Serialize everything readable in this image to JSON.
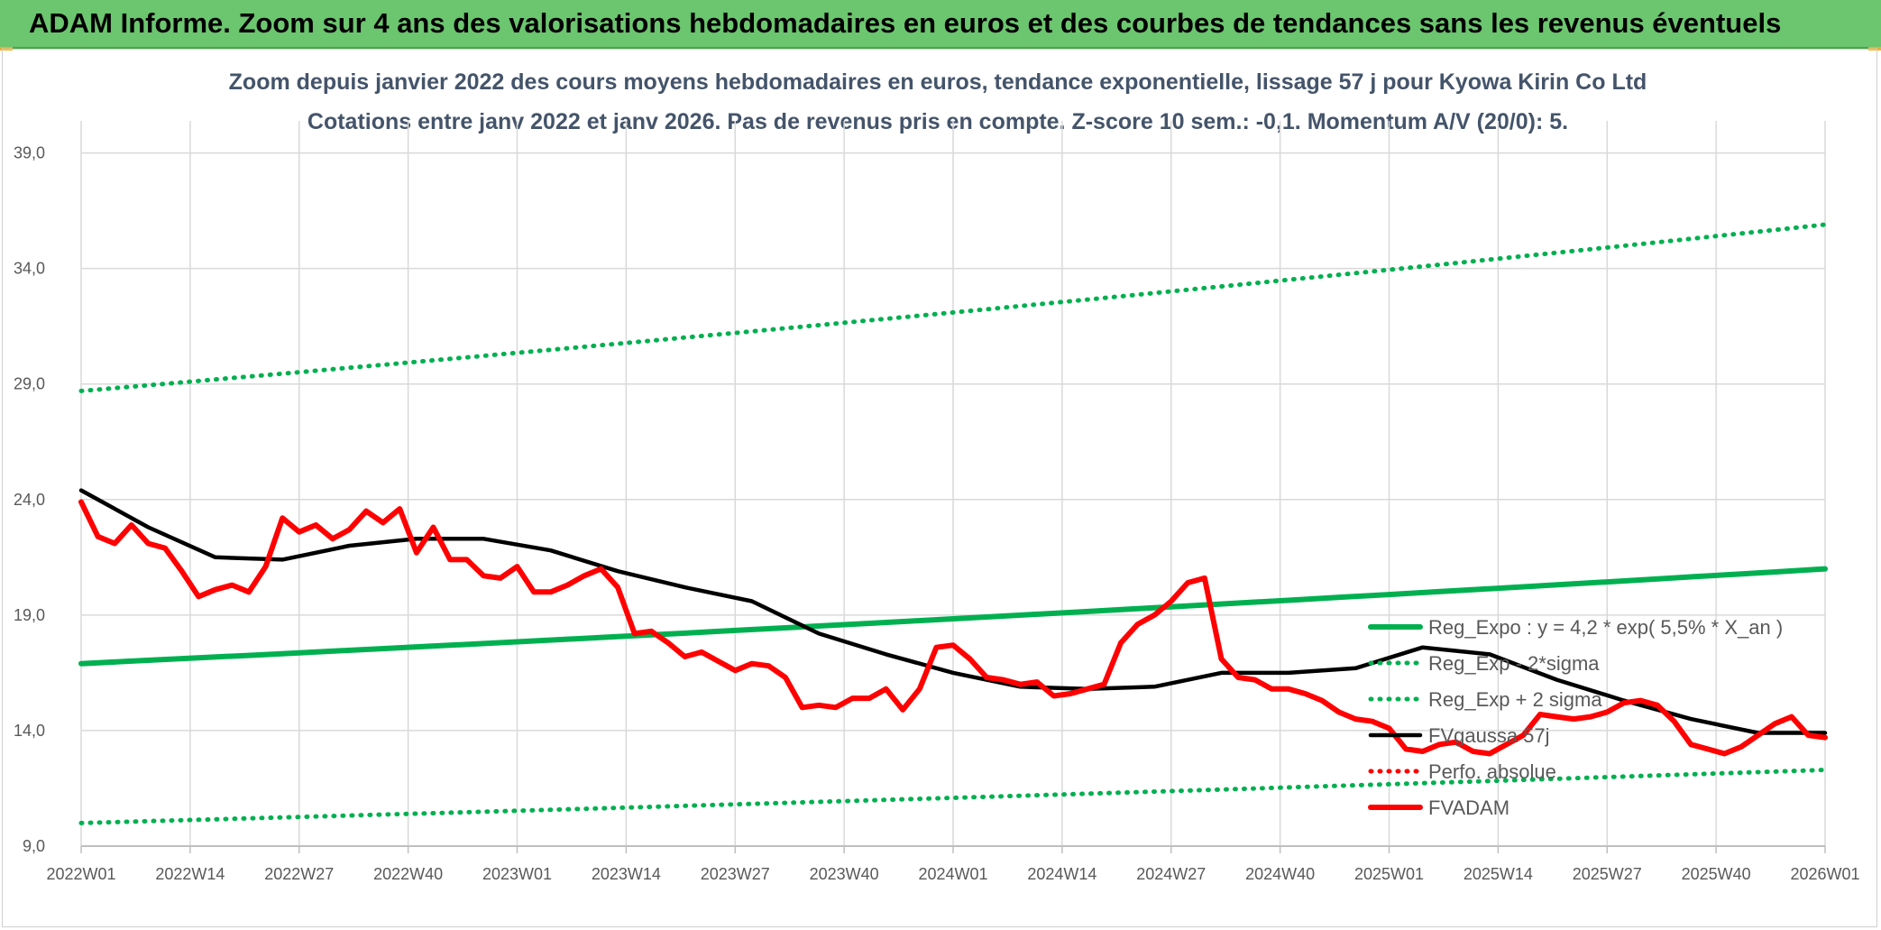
{
  "banner": {
    "title": "ADAM Informe. Zoom sur 4 ans des valorisations hebdomadaires en euros et des courbes de tendances sans les revenus éventuels"
  },
  "colors": {
    "banner": "#6cc56f",
    "trend": "#00b050",
    "fvadam": "#ff0000",
    "smooth": "#000000",
    "perfo": "#ff0000",
    "grid": "#d9d9d9",
    "text": "#44546a"
  },
  "chart_data": {
    "type": "line",
    "title": "Zoom depuis janvier 2022 des cours moyens hebdomadaires en euros, tendance exponentielle, lissage 57 j pour Kyowa Kirin Co Ltd",
    "subtitle": "Cotations entre janv 2022 et janv 2026. Pas de revenus pris en compte. Z-score 10 sem.: -0,1. Momentum A/V (20/0): 5.",
    "xlabel": "",
    "ylabel": "",
    "ylim": [
      9,
      40
    ],
    "yticks": [
      "9,0",
      "14,0",
      "19,0",
      "24,0",
      "29,0",
      "34,0",
      "39,0"
    ],
    "xticks": [
      "2022W01",
      "2022W14",
      "2022W27",
      "2022W40",
      "2023W01",
      "2023W14",
      "2023W27",
      "2023W40",
      "2024W01",
      "2024W14",
      "2024W27",
      "2024W40",
      "2025W01",
      "2025W14",
      "2025W27",
      "2025W40",
      "2026W01"
    ],
    "grid": true,
    "legend_position": "bottom-right",
    "series": [
      {
        "name": "Reg_Expo : y = 4,2 * exp( 5,5% *  X_an )",
        "style": "solid-thick",
        "color": "#00b050",
        "x": [
          0,
          208
        ],
        "y": [
          16.9,
          21.0
        ]
      },
      {
        "name": "Reg_Exp - 2*sigma",
        "style": "dotted",
        "color": "#00b050",
        "x": [
          0,
          208
        ],
        "y": [
          10.0,
          12.3
        ]
      },
      {
        "name": "Reg_Exp + 2 sigma",
        "style": "dotted",
        "color": "#00b050",
        "x": [
          0,
          208
        ],
        "y": [
          28.7,
          35.9
        ]
      },
      {
        "name": "FVgaussa 57j",
        "style": "solid",
        "color": "#000000",
        "x": [
          0,
          8,
          16,
          24,
          32,
          40,
          48,
          56,
          64,
          72,
          80,
          88,
          96,
          104,
          112,
          120,
          128,
          136,
          144,
          152,
          160,
          168,
          176,
          184,
          192,
          200,
          208
        ],
        "y": [
          24.4,
          22.8,
          21.5,
          21.4,
          22.0,
          22.3,
          22.3,
          21.8,
          20.9,
          20.2,
          19.6,
          18.2,
          17.3,
          16.5,
          15.9,
          15.8,
          15.9,
          16.5,
          16.5,
          16.7,
          17.6,
          17.3,
          16.2,
          15.3,
          14.5,
          13.9,
          13.9
        ]
      },
      {
        "name": "Perfo. absolue",
        "style": "dotted",
        "color": "#ff0000",
        "x": [],
        "y": []
      },
      {
        "name": "FVADAM",
        "style": "solid-thick",
        "color": "#ff0000",
        "x": [
          0,
          2,
          4,
          6,
          8,
          10,
          12,
          14,
          16,
          18,
          20,
          22,
          24,
          26,
          28,
          30,
          32,
          34,
          36,
          38,
          40,
          42,
          44,
          46,
          48,
          50,
          52,
          54,
          56,
          58,
          60,
          62,
          64,
          66,
          68,
          70,
          72,
          74,
          76,
          78,
          80,
          82,
          84,
          86,
          88,
          90,
          92,
          94,
          96,
          98,
          100,
          102,
          104,
          106,
          108,
          110,
          112,
          114,
          116,
          118,
          120,
          122,
          124,
          126,
          128,
          130,
          132,
          134,
          136,
          138,
          140,
          142,
          144,
          146,
          148,
          150,
          152,
          154,
          156,
          158,
          160,
          162,
          164,
          166,
          168,
          170,
          172,
          174,
          176,
          178,
          180,
          182,
          184,
          186,
          188,
          190,
          192,
          194,
          196,
          198,
          200,
          202,
          204,
          206,
          208
        ],
        "y": [
          23.9,
          22.4,
          22.1,
          22.9,
          22.1,
          21.9,
          20.9,
          19.8,
          20.1,
          20.3,
          20.0,
          21.1,
          23.2,
          22.6,
          22.9,
          22.3,
          22.7,
          23.5,
          23.0,
          23.6,
          21.7,
          22.8,
          21.4,
          21.4,
          20.7,
          20.6,
          21.1,
          20.0,
          20.0,
          20.3,
          20.7,
          21.0,
          20.2,
          18.2,
          18.3,
          17.8,
          17.2,
          17.4,
          17.0,
          16.6,
          16.9,
          16.8,
          16.3,
          15.0,
          15.1,
          15.0,
          15.4,
          15.4,
          15.8,
          14.9,
          15.8,
          17.6,
          17.7,
          17.1,
          16.3,
          16.2,
          16.0,
          16.1,
          15.5,
          15.6,
          15.8,
          16.0,
          17.8,
          18.6,
          19.0,
          19.6,
          20.4,
          20.6,
          17.1,
          16.3,
          16.2,
          15.8,
          15.8,
          15.6,
          15.3,
          14.8,
          14.5,
          14.4,
          14.1,
          13.2,
          13.1,
          13.4,
          13.5,
          13.1,
          13.0,
          13.4,
          13.8,
          14.7,
          14.6,
          14.5,
          14.6,
          14.8,
          15.2,
          15.3,
          15.1,
          14.4,
          13.4,
          13.2,
          13.0,
          13.3,
          13.8,
          14.3,
          14.6,
          13.8,
          13.7
        ]
      }
    ]
  }
}
